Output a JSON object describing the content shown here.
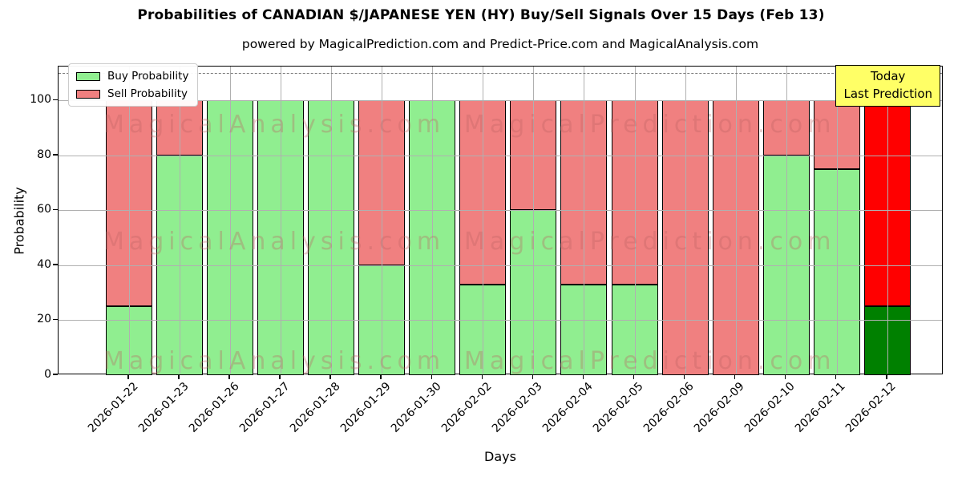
{
  "title": "Probabilities of CANADIAN $/JAPANESE YEN (HY) Buy/Sell Signals Over 15 Days (Feb 13)",
  "subtitle": "powered by MagicalPrediction.com and Predict-Price.com and MagicalAnalysis.com",
  "legend": {
    "items": [
      {
        "label": "Buy Probability",
        "color": "#90EE90"
      },
      {
        "label": "Sell Probability",
        "color": "#F08080"
      }
    ]
  },
  "annotation": {
    "line1": "Today",
    "line2": "Last Prediction",
    "bg_color": "#ffff66"
  },
  "watermark": {
    "left": "MagicalAnalysis.com",
    "right": "MagicalPrediction.com",
    "rows": 3
  },
  "colors": {
    "grid": "#b0b0b0",
    "dashed_line": "#7a7a7a",
    "spine": "#000000",
    "watermark": "#bc6060"
  },
  "chart_data": {
    "type": "bar",
    "stacked": true,
    "title": "Probabilities of CANADIAN $/JAPANESE YEN (HY) Buy/Sell Signals Over 15 Days (Feb 13)",
    "xlabel": "Days",
    "ylabel": "Probability",
    "categories": [
      "2026-01-22",
      "2026-01-23",
      "2026-01-26",
      "2026-01-27",
      "2026-01-28",
      "2026-01-29",
      "2026-01-30",
      "2026-02-02",
      "2026-02-03",
      "2026-02-04",
      "2026-02-05",
      "2026-02-06",
      "2026-02-09",
      "2026-02-10",
      "2026-02-11",
      "2026-02-12"
    ],
    "series": [
      {
        "name": "Buy Probability",
        "color": "#90EE90",
        "values": [
          25,
          80,
          100,
          100,
          100,
          40,
          100,
          33,
          60,
          33,
          33,
          0,
          0,
          80,
          75,
          25
        ]
      },
      {
        "name": "Sell Probability",
        "color": "#F08080",
        "values": [
          75,
          20,
          0,
          0,
          0,
          60,
          0,
          67,
          40,
          67,
          67,
          100,
          100,
          20,
          25,
          75
        ]
      }
    ],
    "today_index": 15,
    "today_colors": {
      "buy": "#008000",
      "sell": "#FF0000"
    },
    "yticks": [
      0,
      20,
      40,
      60,
      80,
      100
    ],
    "ylim": [
      0,
      112.4
    ],
    "dashed_line_y": 110,
    "grid": true,
    "legend_position": "upper left"
  }
}
